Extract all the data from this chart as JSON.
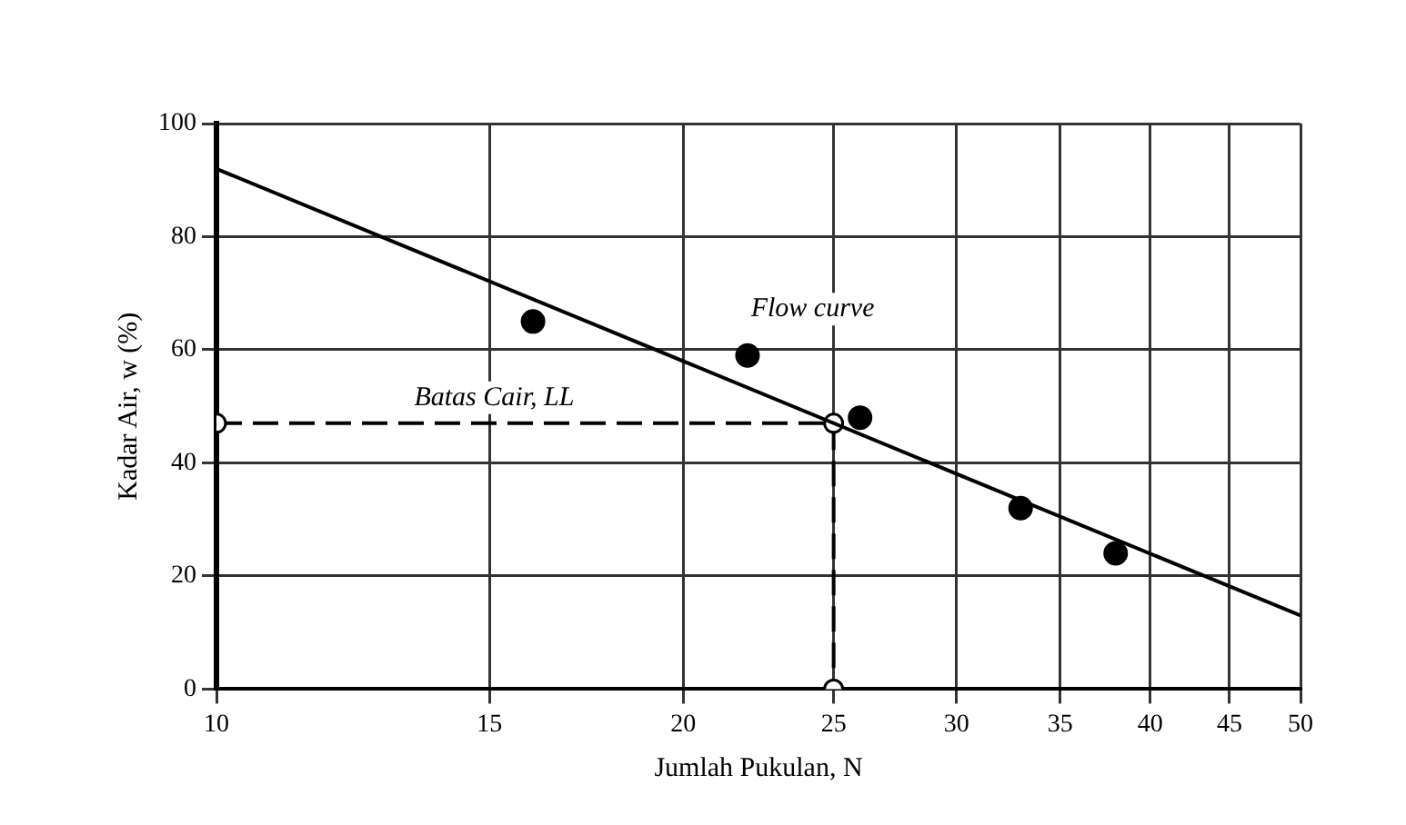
{
  "chart_data": {
    "type": "scatter",
    "xlabel": "Jumlah Pukulan, N",
    "ylabel": "Kadar Air, w (%)",
    "log": "x",
    "grid": true,
    "legend": false,
    "xlim": [
      10,
      50
    ],
    "xticks": [
      10,
      15,
      20,
      25,
      30,
      35,
      40,
      45,
      50
    ],
    "ylim": [
      0,
      100
    ],
    "yticks": [
      0,
      20,
      40,
      60,
      80,
      100
    ],
    "series": [
      {
        "color": "#000000",
        "marker": "circle",
        "x": [
          16,
          22,
          26,
          33,
          38
        ],
        "values": [
          65,
          59,
          48,
          32,
          24
        ]
      },
      {
        "type": "line",
        "name": "Flow curve",
        "color": "#000000",
        "marker": "none",
        "line_style": "solid",
        "x": [
          10,
          50
        ],
        "values": [
          92,
          13
        ]
      },
      {
        "type": "line",
        "name": "Batas Cair, LL",
        "color": "#000000",
        "marker": "circle",
        "line_style": "dashed",
        "x": [
          10,
          25,
          25
        ],
        "values": [
          47,
          47,
          0
        ]
      }
    ]
  }
}
